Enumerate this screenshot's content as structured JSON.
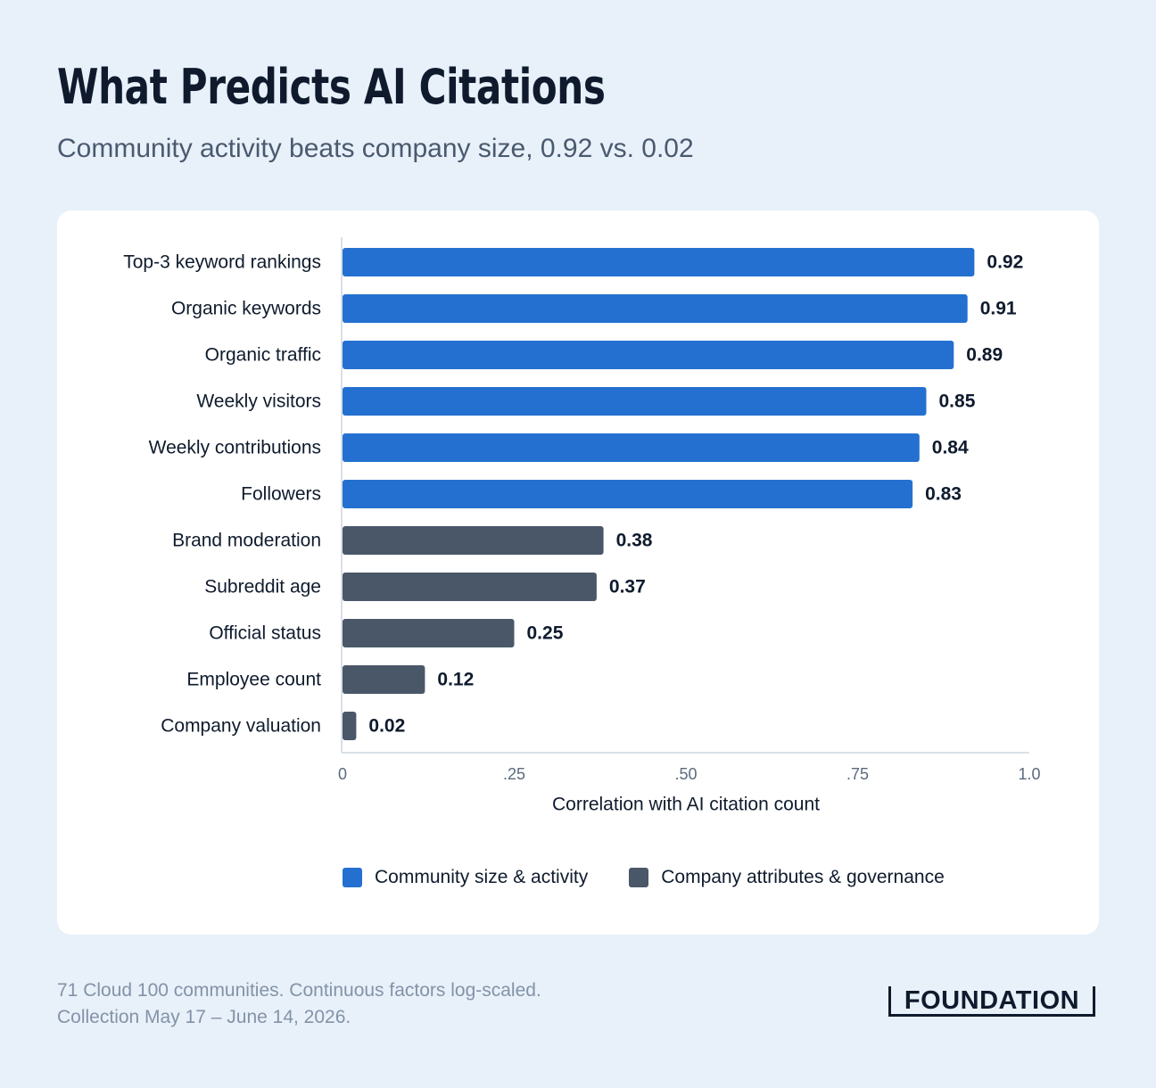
{
  "header": {
    "title": "What Predicts AI Citations",
    "subtitle": "Community activity beats company size, 0.92 vs. 0.02"
  },
  "chart_data": {
    "type": "bar",
    "orientation": "horizontal",
    "categories": [
      "Top-3 keyword rankings",
      "Organic keywords",
      "Organic traffic",
      "Weekly visitors",
      "Weekly contributions",
      "Followers",
      "Brand moderation",
      "Subreddit age",
      "Official status",
      "Employee count",
      "Company valuation"
    ],
    "values": [
      0.92,
      0.91,
      0.89,
      0.85,
      0.84,
      0.83,
      0.38,
      0.37,
      0.25,
      0.12,
      0.02
    ],
    "value_labels": [
      "0.92",
      "0.91",
      "0.89",
      "0.85",
      "0.84",
      "0.83",
      "0.38",
      "0.37",
      "0.25",
      "0.12",
      "0.02"
    ],
    "groups": [
      0,
      0,
      0,
      0,
      0,
      0,
      1,
      1,
      1,
      1,
      1
    ],
    "series": [
      {
        "name": "Community size & activity",
        "color": "#2470d0"
      },
      {
        "name": "Company attributes & governance",
        "color": "#4a5769"
      }
    ],
    "xlabel": "Correlation with AI citation count",
    "xlim": [
      0,
      1.0
    ],
    "xticks": [
      0,
      0.25,
      0.5,
      0.75,
      1.0
    ],
    "xtick_labels": [
      "0",
      ".25",
      ".50",
      ".75",
      "1.0"
    ],
    "grid": false,
    "legend_position": "bottom-center"
  },
  "footnote": {
    "line1": "71 Cloud 100 communities. Continuous factors log-scaled.",
    "line2": "Collection May 17 – June 14, 2026."
  },
  "logo": {
    "text": "FOUNDATION"
  }
}
